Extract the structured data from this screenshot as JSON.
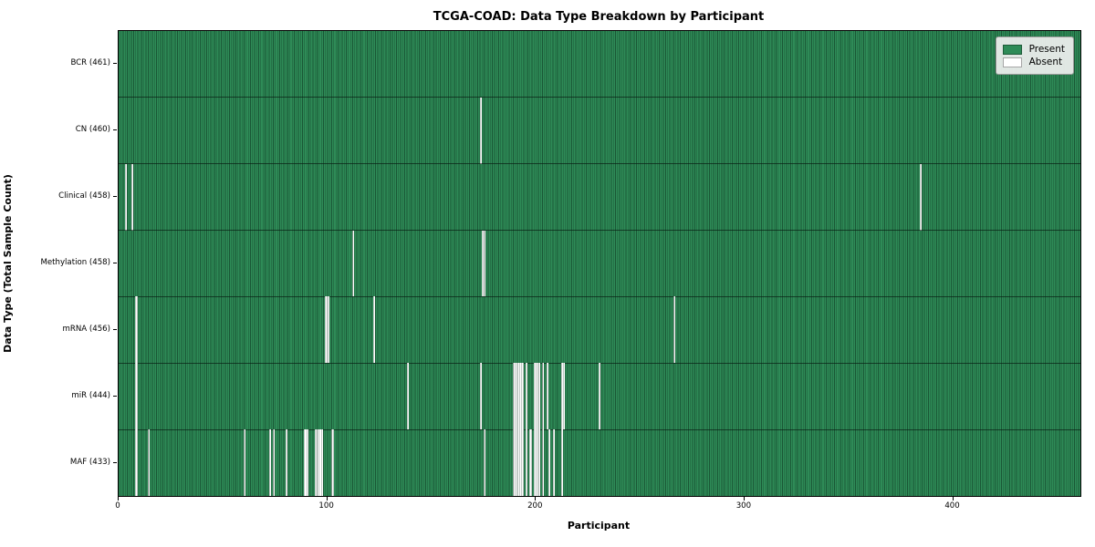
{
  "title": "TCGA-COAD: Data Type Breakdown by Participant",
  "chart_data": {
    "type": "heatmap",
    "title": "TCGA-COAD: Data Type Breakdown by Participant",
    "xlabel": "Participant",
    "ylabel": "Data Type (Total Sample Count)",
    "x_ticks": [
      0,
      100,
      200,
      300,
      400
    ],
    "x_range": [
      0,
      461
    ],
    "n_participants": 461,
    "grid": false,
    "legend": {
      "position": "upper right",
      "entries": [
        {
          "label": "Present",
          "color": "#2e8b57"
        },
        {
          "label": "Absent",
          "color": "#ffffff"
        }
      ]
    },
    "colors": {
      "present": "#2e8b57",
      "absent": "#ffffff",
      "cell_edge": "rgba(5,35,20,0.5)",
      "row_separator": "rgba(0,0,0,0.55)"
    },
    "rows": [
      {
        "label": "BCR (461)",
        "data_type": "BCR",
        "present_count": 461,
        "absent_indices": []
      },
      {
        "label": "CN (460)",
        "data_type": "CN",
        "present_count": 460,
        "absent_indices": [
          173
        ]
      },
      {
        "label": "Clinical (458)",
        "data_type": "Clinical",
        "present_count": 458,
        "absent_indices": [
          3,
          6,
          384
        ]
      },
      {
        "label": "Methylation (458)",
        "data_type": "Methylation",
        "present_count": 458,
        "absent_indices": [
          112,
          174,
          175
        ]
      },
      {
        "label": "mRNA (456)",
        "data_type": "mRNA",
        "present_count": 456,
        "absent_indices": [
          8,
          99,
          100,
          122,
          266
        ]
      },
      {
        "label": "miR (444)",
        "data_type": "miR",
        "present_count": 444,
        "absent_indices": [
          8,
          138,
          173,
          189,
          190,
          191,
          192,
          193,
          195,
          199,
          200,
          201,
          203,
          205,
          212,
          213,
          230
        ]
      },
      {
        "label": "MAF (433)",
        "data_type": "MAF",
        "present_count": 433,
        "absent_indices": [
          8,
          14,
          60,
          72,
          74,
          80,
          89,
          90,
          94,
          95,
          96,
          97,
          102,
          175,
          189,
          190,
          191,
          192,
          193,
          195,
          197,
          199,
          200,
          201,
          203,
          206,
          208,
          212
        ]
      }
    ]
  },
  "layout_hints": {
    "legend_present_label": "Present",
    "legend_absent_label": "Absent"
  }
}
